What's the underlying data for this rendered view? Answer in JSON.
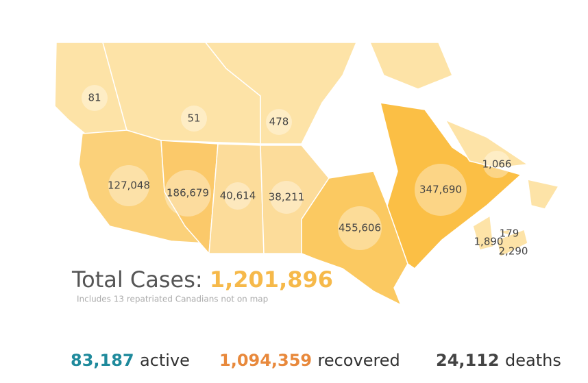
{
  "map": {
    "regions": [
      {
        "value": 81,
        "label": "81"
      },
      {
        "value": 51,
        "label": "51"
      },
      {
        "value": 478,
        "label": "478"
      },
      {
        "value": 127048,
        "label": "127,048"
      },
      {
        "value": 186679,
        "label": "186,679"
      },
      {
        "value": 40614,
        "label": "40,614"
      },
      {
        "value": 38211,
        "label": "38,211"
      },
      {
        "value": 455606,
        "label": "455,606"
      },
      {
        "value": 347690,
        "label": "347,690"
      },
      {
        "value": 1066,
        "label": "1,066"
      },
      {
        "value": 179,
        "label": "179"
      },
      {
        "value": 1890,
        "label": "1,890"
      },
      {
        "value": 2290,
        "label": "2,290"
      }
    ]
  },
  "total": {
    "text": "Total Cases:",
    "value": 1201896,
    "label": "1,201,896",
    "note": "Includes 13 repatriated Canadians not on map"
  },
  "status": [
    {
      "value": 83187,
      "label": "83,187",
      "text": "active",
      "color": "#1f8a9c",
      "bar_color": "#5bc0cf"
    },
    {
      "value": 1094359,
      "label": "1,094,359",
      "text": "recovered",
      "color": "#e8893c",
      "bar_color": "#f6b98f"
    },
    {
      "value": 24112,
      "label": "24,112",
      "text": "deaths",
      "color": "#444444",
      "bar_color": "#9a9a9a"
    }
  ]
}
